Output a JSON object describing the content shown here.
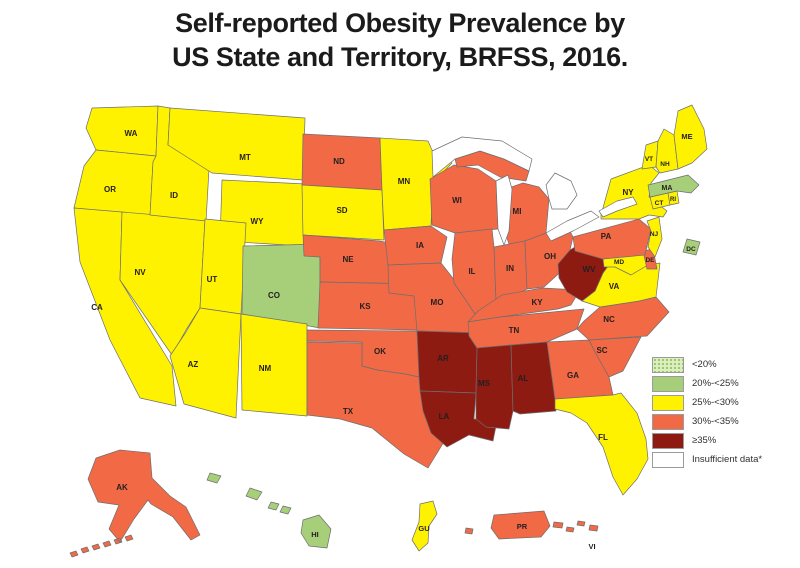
{
  "title": {
    "line1": "Self-reported Obesity Prevalence by",
    "line2": "US State and Territory, BRFSS, 2016."
  },
  "legend": {
    "items": [
      {
        "key": "lt20",
        "label": "<20%",
        "color": "#dcedbe",
        "pattern": "dots",
        "dot_color": "#8fc161"
      },
      {
        "key": "b20_25",
        "label": "20%-<25%",
        "color": "#a7ce78"
      },
      {
        "key": "b25_30",
        "label": "25%-<30%",
        "color": "#fef200"
      },
      {
        "key": "b30_35",
        "label": "30%-<35%",
        "color": "#f26945"
      },
      {
        "key": "gte35",
        "label": "≥35%",
        "color": "#8e1b12"
      },
      {
        "key": "insufficient",
        "label": "Insufficient data*",
        "color": "#ffffff"
      }
    ]
  },
  "chart_data": {
    "type": "choropleth",
    "title": "Self-reported Obesity Prevalence by US State and Territory, BRFSS, 2016.",
    "categories": [
      "<20%",
      "20%-<25%",
      "25%-<30%",
      "30%-<35%",
      "≥35%",
      "Insufficient data*"
    ],
    "states": [
      {
        "id": "WA",
        "label": "WA",
        "category": "b25_30"
      },
      {
        "id": "OR",
        "label": "OR",
        "category": "b25_30"
      },
      {
        "id": "CA",
        "label": "CA",
        "category": "b25_30"
      },
      {
        "id": "NV",
        "label": "NV",
        "category": "b25_30"
      },
      {
        "id": "ID",
        "label": "ID",
        "category": "b25_30"
      },
      {
        "id": "MT",
        "label": "MT",
        "category": "b25_30"
      },
      {
        "id": "WY",
        "label": "WY",
        "category": "b25_30"
      },
      {
        "id": "UT",
        "label": "UT",
        "category": "b25_30"
      },
      {
        "id": "CO",
        "label": "CO",
        "category": "b20_25"
      },
      {
        "id": "AZ",
        "label": "AZ",
        "category": "b25_30"
      },
      {
        "id": "NM",
        "label": "NM",
        "category": "b25_30"
      },
      {
        "id": "ND",
        "label": "ND",
        "category": "b30_35"
      },
      {
        "id": "SD",
        "label": "SD",
        "category": "b25_30"
      },
      {
        "id": "NE",
        "label": "NE",
        "category": "b30_35"
      },
      {
        "id": "KS",
        "label": "KS",
        "category": "b30_35"
      },
      {
        "id": "OK",
        "label": "OK",
        "category": "b30_35"
      },
      {
        "id": "TX",
        "label": "TX",
        "category": "b30_35"
      },
      {
        "id": "MN",
        "label": "MN",
        "category": "b25_30"
      },
      {
        "id": "IA",
        "label": "IA",
        "category": "b30_35"
      },
      {
        "id": "MO",
        "label": "MO",
        "category": "b30_35"
      },
      {
        "id": "AR",
        "label": "AR",
        "category": "gte35"
      },
      {
        "id": "LA",
        "label": "LA",
        "category": "gte35"
      },
      {
        "id": "WI",
        "label": "WI",
        "category": "b30_35"
      },
      {
        "id": "IL",
        "label": "IL",
        "category": "b30_35"
      },
      {
        "id": "MI",
        "label": "MI",
        "category": "b30_35"
      },
      {
        "id": "IN",
        "label": "IN",
        "category": "b30_35"
      },
      {
        "id": "OH",
        "label": "OH",
        "category": "b30_35"
      },
      {
        "id": "KY",
        "label": "KY",
        "category": "b30_35"
      },
      {
        "id": "TN",
        "label": "TN",
        "category": "b30_35"
      },
      {
        "id": "MS",
        "label": "MS",
        "category": "gte35"
      },
      {
        "id": "AL",
        "label": "AL",
        "category": "gte35"
      },
      {
        "id": "GA",
        "label": "GA",
        "category": "b30_35"
      },
      {
        "id": "FL",
        "label": "FL",
        "category": "b25_30"
      },
      {
        "id": "SC",
        "label": "SC",
        "category": "b30_35"
      },
      {
        "id": "NC",
        "label": "NC",
        "category": "b30_35"
      },
      {
        "id": "VA",
        "label": "VA",
        "category": "b25_30"
      },
      {
        "id": "WV",
        "label": "WV",
        "category": "gte35"
      },
      {
        "id": "MD",
        "label": "MD",
        "category": "b25_30"
      },
      {
        "id": "DE",
        "label": "DE",
        "category": "b30_35"
      },
      {
        "id": "PA",
        "label": "PA",
        "category": "b30_35"
      },
      {
        "id": "NJ",
        "label": "NJ",
        "category": "b25_30"
      },
      {
        "id": "NY",
        "label": "NY",
        "category": "b25_30"
      },
      {
        "id": "CT",
        "label": "CT",
        "category": "b25_30"
      },
      {
        "id": "RI",
        "label": "RI",
        "category": "b25_30"
      },
      {
        "id": "MA",
        "label": "MA",
        "category": "b20_25"
      },
      {
        "id": "VT",
        "label": "VT",
        "category": "b25_30"
      },
      {
        "id": "NH",
        "label": "NH",
        "category": "b25_30"
      },
      {
        "id": "ME",
        "label": "ME",
        "category": "b25_30"
      },
      {
        "id": "DC",
        "label": "DC",
        "category": "b20_25"
      },
      {
        "id": "AK",
        "label": "AK",
        "category": "b30_35"
      },
      {
        "id": "HI",
        "label": "HI",
        "category": "b20_25"
      },
      {
        "id": "GU",
        "label": "GU",
        "category": "b25_30"
      },
      {
        "id": "PR",
        "label": "PR",
        "category": "b30_35"
      },
      {
        "id": "VI",
        "label": "VI",
        "category": "b30_35"
      }
    ]
  }
}
